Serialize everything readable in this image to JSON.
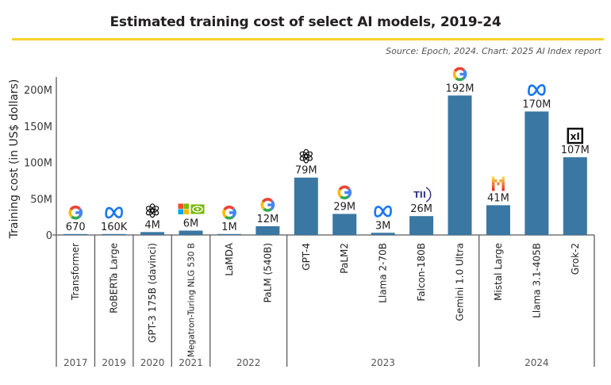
{
  "chart_data": {
    "type": "bar",
    "title": "Estimated training cost of select AI models, 2019-24",
    "source": "Source: Epoch, 2024. Chart: 2025 AI Index report",
    "xlabel": "",
    "ylabel": "Training cost (in US$ dollars)",
    "ylim": [
      0,
      200000000
    ],
    "yticks": [
      {
        "value": 0,
        "label": "0"
      },
      {
        "value": 50000000,
        "label": "50M"
      },
      {
        "value": 100000000,
        "label": "100M"
      },
      {
        "value": 150000000,
        "label": "150M"
      },
      {
        "value": 200000000,
        "label": "200M"
      }
    ],
    "grid": false,
    "bar_color": "#3a77a3",
    "accent_color": "#f8d22c",
    "categories": [
      "Transformer",
      "RoBERTa Large",
      "GPT-3 175B (davinci)",
      "Megatron-Turing NLG 530 B",
      "LaMDA",
      "PaLM (540B)",
      "GPT-4",
      "PaLM2",
      "Llama 2-70B",
      "Falcon-180B",
      "Gemini 1.0 Ultra",
      "Mistal Large",
      "Llama 3.1-405B",
      "Grok-2"
    ],
    "values": [
      670,
      160000,
      4000000,
      6000000,
      1000000,
      12000000,
      79000000,
      29000000,
      3000000,
      26000000,
      192000000,
      41000000,
      170000000,
      107000000
    ],
    "value_labels": [
      "670",
      "160K",
      "4M",
      "6M",
      "1M",
      "12M",
      "79M",
      "29M",
      "3M",
      "26M",
      "192M",
      "41M",
      "170M",
      "107M"
    ],
    "developer_icons": [
      "google-icon",
      "meta-icon",
      "openai-icon",
      "microsoft-nvidia-icon",
      "google-icon",
      "google-icon",
      "openai-icon",
      "google-icon",
      "meta-icon",
      "tii-icon",
      "google-icon",
      "mistral-icon",
      "meta-icon",
      "xai-icon"
    ],
    "year_groups": [
      {
        "year": "2017",
        "count": 1
      },
      {
        "year": "2019",
        "count": 1
      },
      {
        "year": "2020",
        "count": 1
      },
      {
        "year": "2021",
        "count": 1
      },
      {
        "year": "2022",
        "count": 2
      },
      {
        "year": "2023",
        "count": 5
      },
      {
        "year": "2024",
        "count": 3
      }
    ]
  }
}
